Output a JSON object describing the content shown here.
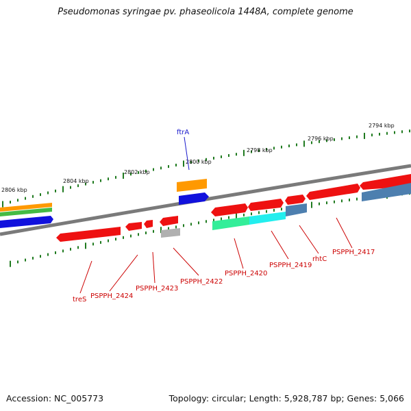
{
  "title": "Pseudomonas syringae pv. phaseolicola 1448A, complete genome",
  "accession": "Accession: NC_005773",
  "stats": "Topology: circular; Length: 5,928,787 bp; Genes: 5,066",
  "colors": {
    "backbone": "#7a7a7a",
    "tick": "#1f7a1f",
    "gene_label_red": "#cc0000",
    "gene_label_blue": "#1a1acc",
    "red": "#ee1111",
    "orange": "#ff9900",
    "green": "#44bb44",
    "blue": "#1111dd",
    "steelblue": "#4d7faf",
    "gray": "#b0b0b0",
    "aquamarine": "#33ee99",
    "cyan": "#22eeee"
  },
  "kbp_labels": [
    "2806 kbp",
    "2804 kbp",
    "2802 kbp",
    "2800 kbp",
    "2798 kbp",
    "2796 kbp",
    "2794 kbp"
  ],
  "gene_labels": [
    "ftrA",
    "treS",
    "PSPPH_2424",
    "PSPPH_2423",
    "PSPPH_2422",
    "PSPPH_2420",
    "PSPPH_2419",
    "rhtC",
    "PSPPH_2417"
  ]
}
